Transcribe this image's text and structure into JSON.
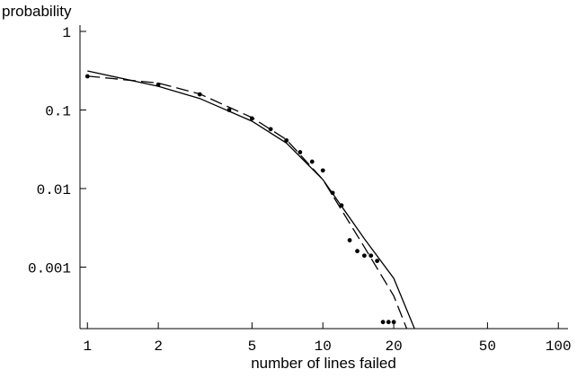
{
  "chart_data": {
    "type": "scatter",
    "y_label": "probability",
    "x_label": "number of lines failed",
    "log_x": true,
    "log_y": true,
    "xlim": [
      0.93,
      108
    ],
    "ylim": [
      0.000165,
      1.14
    ],
    "xticks": [
      1,
      2,
      5,
      10,
      20,
      50,
      100
    ],
    "yticks": [
      1,
      0.1,
      0.01,
      0.001
    ],
    "color": "#000000",
    "series": [
      {
        "style": "points",
        "x": [
          1,
          2,
          3,
          4,
          5,
          6,
          7,
          8,
          9,
          10,
          11,
          12,
          13,
          14,
          15,
          16,
          17,
          18,
          19,
          20
        ],
        "values": [
          0.268,
          0.21,
          0.158,
          0.1,
          0.078,
          0.057,
          0.041,
          0.029,
          0.022,
          0.017,
          0.0088,
          0.0061,
          0.0022,
          0.0016,
          0.0014,
          0.0014,
          0.0012,
          0.0002,
          0.0002,
          0.0002
        ]
      },
      {
        "style": "solid",
        "x": [
          1,
          2,
          3,
          5,
          7,
          10,
          15,
          20,
          24.5
        ],
        "values": [
          0.314,
          0.2,
          0.14,
          0.072,
          0.038,
          0.013,
          0.0023,
          0.00072,
          0.000165
        ]
      },
      {
        "style": "dashed",
        "x": [
          1,
          2,
          3,
          5,
          7,
          10,
          15,
          20,
          22.7
        ],
        "values": [
          0.27,
          0.22,
          0.16,
          0.08,
          0.042,
          0.013,
          0.0018,
          0.00043,
          0.000165
        ]
      }
    ]
  }
}
